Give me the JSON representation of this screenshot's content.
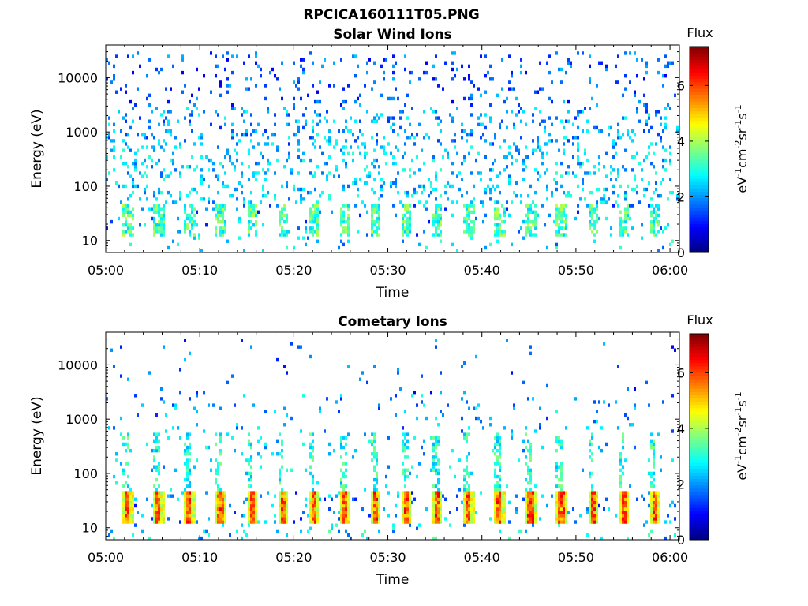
{
  "figure_title": "RPCICA160111T05.PNG",
  "chart_data": [
    {
      "type": "heatmap",
      "title": "Solar Wind Ions",
      "xlabel": "Time",
      "ylabel": "Energy (eV)",
      "x_ticks": [
        "05:00",
        "05:10",
        "05:20",
        "05:30",
        "05:40",
        "05:50",
        "06:00"
      ],
      "xlim": [
        "05:00",
        "06:01"
      ],
      "y_scale": "log",
      "y_ticks": [
        10,
        100,
        1000,
        10000
      ],
      "y_tick_labels": [
        "10",
        "100",
        "1000",
        "10000"
      ],
      "ylim": [
        6,
        40000
      ],
      "colorbar": {
        "title": "Flux",
        "label": "eV-1cm-2sr-1s-1",
        "range": [
          0,
          7.4
        ],
        "ticks": [
          0,
          2,
          4,
          6
        ],
        "tick_labels": [
          "0",
          "2",
          "4",
          "6"
        ],
        "colormap": "jet"
      },
      "sweep_period_minutes": 3.3,
      "description_bands": [
        {
          "energy_range_eV": [
            12,
            45
          ],
          "flux_range": [
            2,
            4.2
          ],
          "pattern": "periodic bursts every sweep"
        },
        {
          "energy_range_eV": [
            70,
            3000
          ],
          "flux_range": [
            2,
            3.2
          ],
          "pattern": "sparse scattered"
        },
        {
          "energy_range_eV": [
            3000,
            30000
          ],
          "flux_range": [
            1,
            2.5
          ],
          "pattern": "very sparse scattered"
        }
      ]
    },
    {
      "type": "heatmap",
      "title": "Cometary Ions",
      "xlabel": "Time",
      "ylabel": "Energy (eV)",
      "x_ticks": [
        "05:00",
        "05:10",
        "05:20",
        "05:30",
        "05:40",
        "05:50",
        "06:00"
      ],
      "xlim": [
        "05:00",
        "06:01"
      ],
      "y_scale": "log",
      "y_ticks": [
        10,
        100,
        1000,
        10000
      ],
      "y_tick_labels": [
        "10",
        "100",
        "1000",
        "10000"
      ],
      "ylim": [
        6,
        40000
      ],
      "colorbar": {
        "title": "Flux",
        "label": "eV-1cm-2sr-1s-1",
        "range": [
          0,
          7.4
        ],
        "ticks": [
          0,
          2,
          4,
          6
        ],
        "tick_labels": [
          "0",
          "2",
          "4",
          "6"
        ],
        "colormap": "jet"
      },
      "sweep_period_minutes": 3.3,
      "description_bands": [
        {
          "energy_range_eV": [
            12,
            45
          ],
          "flux_range": [
            4,
            6.5
          ],
          "pattern": "intense periodic bursts every sweep"
        },
        {
          "energy_range_eV": [
            60,
            600
          ],
          "flux_range": [
            2,
            4
          ],
          "pattern": "vertical streaks above each burst"
        },
        {
          "energy_range_eV": [
            600,
            12000
          ],
          "flux_range": [
            1,
            2.5
          ],
          "pattern": "sparse scattered"
        }
      ]
    }
  ]
}
